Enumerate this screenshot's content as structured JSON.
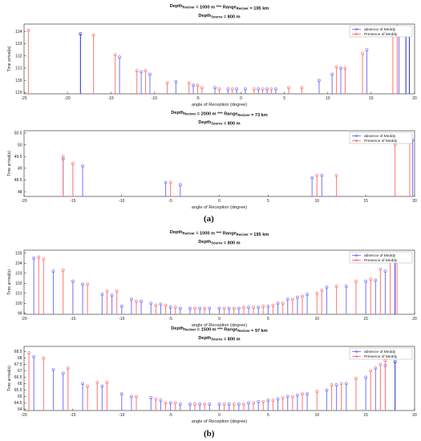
{
  "colors": {
    "absence": "#7f7fff",
    "presence": "#ff7f7f",
    "absence_dark": "#3a3ad8",
    "presence_dark": "#d83a3a",
    "axis": "#222222",
    "grid": "#dddddd"
  },
  "panel_labels": [
    "(a)",
    "(b)"
  ],
  "chart_data": [
    {
      "type": "stem",
      "title_lines": [
        "Depth_Reciver = 1000 m *** Range_Reciver = 195 km",
        "Depth_Source = 800 m"
      ],
      "xlabel": "angle of Reception (degree)",
      "ylabel": "Time arrival(s)",
      "xlim": [
        -25,
        20
      ],
      "ylim": [
        128.9,
        134.6
      ],
      "xticks": [
        -25,
        -20,
        -15,
        -10,
        -5,
        0,
        5,
        10,
        15,
        20
      ],
      "yticks": [
        129,
        130,
        131,
        132,
        133,
        134
      ],
      "legend": [
        "absence of Meddy",
        "Presence of Meddy"
      ],
      "legend_position": "top-right",
      "series": [
        {
          "name": "absence of Meddy",
          "points": [
            [
              -18.5,
              133.8
            ],
            [
              -14,
              131.9
            ],
            [
              -11.5,
              130.7
            ],
            [
              -10.5,
              130.5
            ],
            [
              -7.5,
              129.9
            ],
            [
              -5.5,
              129.6
            ],
            [
              -3,
              129.4
            ],
            [
              -1.5,
              129.3
            ],
            [
              -0.5,
              129.3
            ],
            [
              0.5,
              129.3
            ],
            [
              2,
              129.3
            ],
            [
              3,
              129.3
            ],
            [
              4,
              129.3
            ],
            [
              9,
              130.0
            ],
            [
              10.5,
              130.5
            ],
            [
              11.5,
              131.0
            ],
            [
              14.5,
              132.5
            ],
            [
              18.2,
              134.0
            ],
            [
              19,
              134.2
            ],
            [
              19.4,
              133.8
            ]
          ]
        },
        {
          "name": "Presence of Meddy",
          "points": [
            [
              -24.5,
              134.1
            ],
            [
              -17,
              133.7
            ],
            [
              -14.5,
              132.1
            ],
            [
              -12,
              130.8
            ],
            [
              -11,
              130.8
            ],
            [
              -8.5,
              129.8
            ],
            [
              -6,
              129.8
            ],
            [
              -5,
              129.6
            ],
            [
              -4.5,
              129.4
            ],
            [
              -2.5,
              129.3
            ],
            [
              -1,
              129.3
            ],
            [
              1.5,
              129.3
            ],
            [
              2.5,
              129.3
            ],
            [
              3.5,
              129.3
            ],
            [
              5.5,
              129.4
            ],
            [
              7,
              129.4
            ],
            [
              11,
              131.1
            ],
            [
              12,
              131.0
            ],
            [
              14,
              132.2
            ],
            [
              17.5,
              134.2
            ],
            [
              18,
              134.4
            ]
          ]
        }
      ]
    },
    {
      "type": "stem",
      "title_lines": [
        "Depth_Reciver = 2000 m *** Range_Reciver = 73 km",
        "Depth_Source = 800 m"
      ],
      "xlabel": "angle of Reception (degree)",
      "ylabel": "Time arrival(s)",
      "xlim": [
        -20,
        20
      ],
      "ylim": [
        47.8,
        50.6
      ],
      "xticks": [
        -20,
        -15,
        -10,
        -5,
        0,
        5,
        10,
        15,
        20
      ],
      "yticks": [
        48,
        48.5,
        49,
        49.5,
        50,
        50.5
      ],
      "ytick_labels": [
        "48",
        "48.5",
        "49",
        "49.5",
        "50",
        "50.5"
      ],
      "legend": [
        "absence of Meddy",
        "Presence of Meddy"
      ],
      "legend_position": "top-right",
      "series": [
        {
          "name": "absence of Meddy",
          "points": [
            [
              -16,
              49.4
            ],
            [
              -14,
              49.1
            ],
            [
              -5.5,
              48.4
            ],
            [
              -4,
              48.3
            ],
            [
              9.5,
              48.6
            ],
            [
              10.5,
              48.7
            ],
            [
              19.8,
              50.2
            ]
          ]
        },
        {
          "name": "Presence of Meddy",
          "points": [
            [
              -16,
              49.5
            ],
            [
              -15,
              49.2
            ],
            [
              -5,
              48.4
            ],
            [
              10,
              48.7
            ],
            [
              12,
              48.7
            ],
            [
              18,
              50.0
            ],
            [
              19.5,
              50.3
            ]
          ]
        }
      ]
    },
    {
      "type": "stem",
      "title_lines": [
        "Depth_Reciver = 1000 m *** Range_Reciver = 195 km",
        "Depth_Source = 800 m"
      ],
      "xlabel": "angle of Reception (degree)",
      "ylabel": "Time arrival(s)",
      "xlim": [
        -20,
        20
      ],
      "ylim": [
        98.9,
        105.3
      ],
      "xticks": [
        -20,
        -15,
        -10,
        -5,
        0,
        5,
        10,
        15,
        20
      ],
      "yticks": [
        99,
        100,
        101,
        102,
        103,
        104,
        105
      ],
      "legend": [
        "absence of Meddy",
        "Presence of Meddy"
      ],
      "legend_position": "top-right",
      "series": [
        {
          "name": "absence of Meddy",
          "points": [
            [
              -19,
              104.5
            ],
            [
              -17,
              103.2
            ],
            [
              -15,
              102.2
            ],
            [
              -14,
              101.9
            ],
            [
              -12,
              100.9
            ],
            [
              -11,
              100.8
            ],
            [
              -10,
              99.7
            ],
            [
              -9,
              100.4
            ],
            [
              -8,
              100.2
            ],
            [
              -7,
              100.0
            ],
            [
              -6,
              99.9
            ],
            [
              -5,
              99.6
            ],
            [
              -4,
              99.5
            ],
            [
              -3,
              99.5
            ],
            [
              -2,
              99.5
            ],
            [
              -1,
              99.5
            ],
            [
              0,
              99.5
            ],
            [
              1,
              99.5
            ],
            [
              2,
              99.5
            ],
            [
              3,
              99.6
            ],
            [
              4,
              99.6
            ],
            [
              5,
              99.7
            ],
            [
              6,
              100.0
            ],
            [
              7,
              100.4
            ],
            [
              8,
              100.6
            ],
            [
              9,
              100.9
            ],
            [
              11,
              101.6
            ],
            [
              13,
              101.7
            ],
            [
              15,
              102.2
            ],
            [
              16,
              102.3
            ],
            [
              17,
              103.2
            ],
            [
              18,
              104.6
            ]
          ]
        },
        {
          "name": "Presence of Meddy",
          "points": [
            [
              -18.5,
              104.6
            ],
            [
              -18,
              104.4
            ],
            [
              -16,
              103.3
            ],
            [
              -13.5,
              101.9
            ],
            [
              -11.5,
              101.2
            ],
            [
              -10.5,
              101.2
            ],
            [
              -8.5,
              100.2
            ],
            [
              -6.5,
              99.8
            ],
            [
              -5.5,
              99.8
            ],
            [
              -4.5,
              99.6
            ],
            [
              -2.5,
              99.5
            ],
            [
              -1.5,
              99.5
            ],
            [
              0.5,
              99.5
            ],
            [
              1.5,
              99.5
            ],
            [
              2.5,
              99.6
            ],
            [
              3.5,
              99.6
            ],
            [
              4.5,
              99.7
            ],
            [
              5.5,
              99.8
            ],
            [
              6.5,
              100.0
            ],
            [
              7.5,
              100.4
            ],
            [
              8.5,
              100.7
            ],
            [
              10,
              101.0
            ],
            [
              10.5,
              101.3
            ],
            [
              12,
              101.7
            ],
            [
              14,
              102.2
            ],
            [
              15.5,
              102.4
            ],
            [
              16.5,
              103.4
            ],
            [
              17.5,
              104.6
            ],
            [
              18.2,
              105.0
            ]
          ]
        }
      ]
    },
    {
      "type": "stem",
      "title_lines": [
        "Depth_Reciver = 1500 m *** Range_Reciver = 97 km",
        "Depth_Source = 800 m"
      ],
      "xlabel": "angle of Reception (degree)",
      "ylabel": "Time arrival(s)",
      "xlim": [
        -20,
        20
      ],
      "ylim": [
        63.9,
        68.9
      ],
      "xticks": [
        -20,
        -15,
        -10,
        -5,
        0,
        5,
        10,
        15,
        20
      ],
      "yticks": [
        64,
        64.5,
        65,
        65.5,
        66,
        66.5,
        67,
        67.5,
        68,
        68.5
      ],
      "ytick_labels": [
        "64",
        "64.5",
        "65",
        "65.5",
        "66",
        "66.5",
        "67",
        "67.5",
        "68",
        "68.5"
      ],
      "legend": [
        "absence of Meddy",
        "Presence of Meddy"
      ],
      "legend_position": "top-right",
      "series": [
        {
          "name": "absence of Meddy",
          "points": [
            [
              -19,
              68.1
            ],
            [
              -17,
              67.1
            ],
            [
              -16,
              66.8
            ],
            [
              -14,
              66.0
            ],
            [
              -12,
              65.8
            ],
            [
              -10,
              65.2
            ],
            [
              -9,
              65.0
            ],
            [
              -7,
              64.9
            ],
            [
              -6,
              64.7
            ],
            [
              -5,
              64.5
            ],
            [
              -4,
              64.4
            ],
            [
              -3,
              64.4
            ],
            [
              -2,
              64.4
            ],
            [
              -1,
              64.4
            ],
            [
              0,
              64.4
            ],
            [
              1,
              64.4
            ],
            [
              2,
              64.4
            ],
            [
              3,
              64.5
            ],
            [
              4,
              64.6
            ],
            [
              5,
              64.7
            ],
            [
              6,
              64.8
            ],
            [
              7,
              65.0
            ],
            [
              8,
              65.1
            ],
            [
              9,
              65.2
            ],
            [
              11,
              65.5
            ],
            [
              12,
              65.9
            ],
            [
              13,
              66.0
            ],
            [
              15,
              66.5
            ],
            [
              16,
              67.2
            ],
            [
              17,
              67.4
            ],
            [
              18,
              67.7
            ]
          ]
        },
        {
          "name": "Presence of Meddy",
          "points": [
            [
              -19.5,
              68.4
            ],
            [
              -18,
              68.0
            ],
            [
              -15.5,
              67.2
            ],
            [
              -13.5,
              65.8
            ],
            [
              -12.5,
              66.1
            ],
            [
              -11.5,
              66.1
            ],
            [
              -8.5,
              65.0
            ],
            [
              -6.5,
              64.8
            ],
            [
              -5.5,
              64.5
            ],
            [
              -4.5,
              64.5
            ],
            [
              -2.5,
              64.4
            ],
            [
              -1.5,
              64.4
            ],
            [
              0.5,
              64.4
            ],
            [
              1.5,
              64.4
            ],
            [
              2.5,
              64.4
            ],
            [
              3.5,
              64.5
            ],
            [
              4.5,
              64.6
            ],
            [
              5.5,
              64.7
            ],
            [
              6.5,
              64.9
            ],
            [
              7.5,
              65.0
            ],
            [
              8.5,
              65.2
            ],
            [
              10,
              65.4
            ],
            [
              11.5,
              65.9
            ],
            [
              12.5,
              66.0
            ],
            [
              14,
              66.4
            ],
            [
              15.5,
              67.0
            ],
            [
              16.5,
              67.5
            ],
            [
              17,
              67.8
            ]
          ]
        }
      ]
    }
  ]
}
